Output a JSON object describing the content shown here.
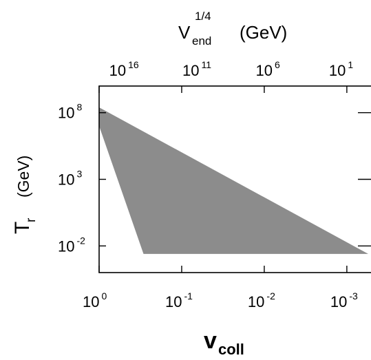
{
  "chart_data": {
    "type": "area",
    "x_scale": "log",
    "y_scale": "log",
    "x_reversed": true,
    "xlim": [
      1,
      0.0005
    ],
    "ylim": [
      0.0001,
      10000000000
    ],
    "grid": false,
    "legend": "none",
    "fill_color": "#8c8c8c",
    "xlabel": {
      "main": "v",
      "sub": "coll"
    },
    "ylabel": {
      "main": "T",
      "sub": "r",
      "tail": "(GeV)"
    },
    "top_axis_label": {
      "main": "V",
      "sub": "end",
      "sup": "1/4",
      "tail": "(GeV)"
    },
    "x_ticks": [
      {
        "base": "10",
        "exp": "0",
        "value": 1
      },
      {
        "base": "10",
        "exp": "-1",
        "value": 0.1
      },
      {
        "base": "10",
        "exp": "-2",
        "value": 0.01
      },
      {
        "base": "10",
        "exp": "-3",
        "value": 0.001
      }
    ],
    "y_ticks": [
      {
        "base": "10",
        "exp": "8",
        "value": 100000000
      },
      {
        "base": "10",
        "exp": "3",
        "value": 1000
      },
      {
        "base": "10",
        "exp": "-2",
        "value": 0.01
      }
    ],
    "top_ticks": [
      {
        "base": "10",
        "exp": "16",
        "value": 10000000000000000
      },
      {
        "base": "10",
        "exp": "11",
        "value": 100000000000
      },
      {
        "base": "10",
        "exp": "6",
        "value": 1000000
      },
      {
        "base": "10",
        "exp": "1",
        "value": 10
      }
    ],
    "region": [
      {
        "x": 1,
        "y": 250000000
      },
      {
        "x": 0.00055,
        "y": 0.0025
      },
      {
        "x": 0.29,
        "y": 0.0025
      },
      {
        "x": 1,
        "y": 10000000
      }
    ]
  }
}
